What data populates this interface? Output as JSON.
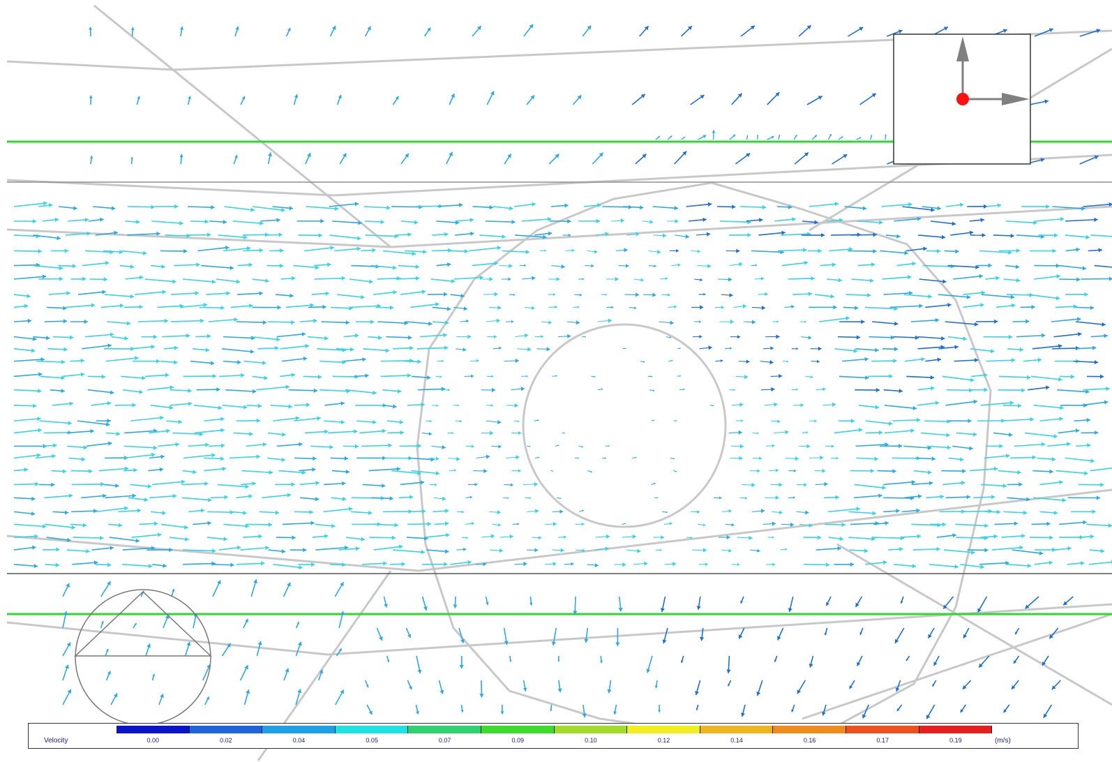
{
  "legend": {
    "title": "Velocity",
    "unit": "(m/s)",
    "ticks": [
      "0.00",
      "0.02",
      "0.04",
      "0.05",
      "0.07",
      "0.09",
      "0.10",
      "0.12",
      "0.14",
      "0.16",
      "0.17",
      "0.19"
    ],
    "colors": [
      "#0a14c8",
      "#1e64dc",
      "#1ea0e6",
      "#1ee1e1",
      "#2ed270",
      "#3cdc2a",
      "#a0dc28",
      "#f0f01e",
      "#f0b41e",
      "#f08c1e",
      "#f0501e",
      "#e61e1e"
    ]
  },
  "arrow_colors": {
    "cyan": "#35d3e6",
    "light_blue": "#2aa8e6",
    "blue": "#1e6ed2"
  },
  "geometry_colors": {
    "mesh": "#c8c8c8",
    "plane_line": "#2fd82f",
    "axis_arrow": "#808080",
    "origin_dot": "#ff1010"
  }
}
